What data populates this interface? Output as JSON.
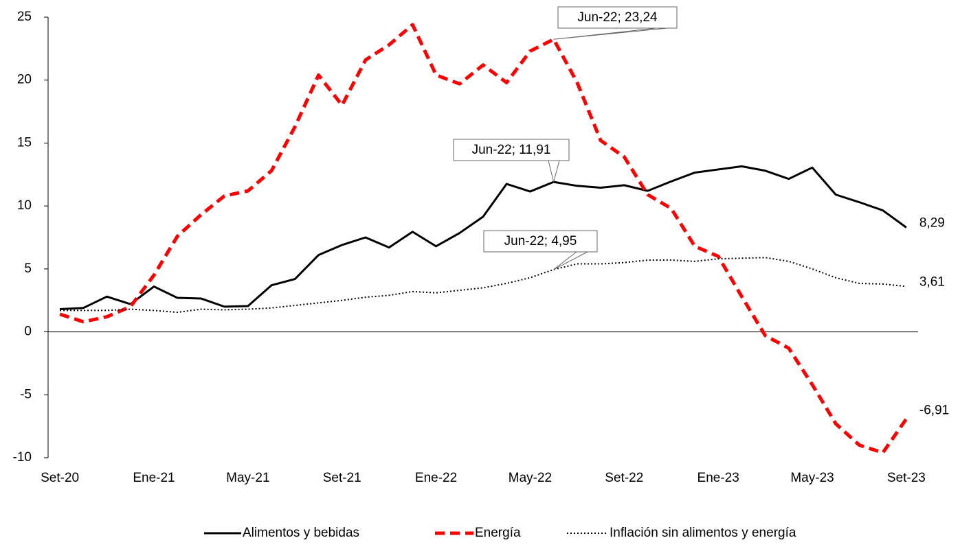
{
  "chart_data": {
    "type": "line",
    "categories": [
      "Set-20",
      null,
      null,
      null,
      "Ene-21",
      null,
      null,
      null,
      "May-21",
      null,
      null,
      null,
      "Set-21",
      null,
      null,
      null,
      "Ene-22",
      null,
      null,
      null,
      "May-22",
      null,
      null,
      null,
      "Set-22",
      null,
      null,
      null,
      "Ene-23",
      null,
      null,
      null,
      "May-23",
      null,
      null,
      null,
      "Set-23"
    ],
    "series": [
      {
        "name": "Alimentos y bebidas",
        "color": "#000000",
        "style": "solid",
        "values": [
          1.8,
          1.9,
          2.8,
          2.2,
          3.6,
          2.7,
          2.65,
          2.0,
          2.05,
          3.7,
          4.2,
          6.1,
          6.9,
          7.5,
          6.7,
          7.95,
          6.8,
          7.85,
          9.15,
          11.75,
          11.15,
          11.91,
          11.6,
          11.45,
          11.65,
          11.2,
          11.95,
          12.65,
          12.9,
          13.15,
          12.8,
          12.15,
          13.05,
          10.9,
          10.3,
          9.65,
          8.29
        ],
        "value_labels": [
          null,
          null,
          null,
          null,
          null,
          null,
          null,
          null,
          null,
          null,
          null,
          null,
          null,
          null,
          null,
          null,
          null,
          null,
          null,
          null,
          null,
          "Jun-22; 11,91",
          null,
          null,
          null,
          null,
          null,
          null,
          null,
          null,
          null,
          null,
          null,
          null,
          null,
          null,
          "8,29"
        ]
      },
      {
        "name": "Energía",
        "color": "#ff0000",
        "style": "dashed",
        "values": [
          1.4,
          0.8,
          1.2,
          2.0,
          4.5,
          7.6,
          9.3,
          10.8,
          11.2,
          12.8,
          16.3,
          20.4,
          18.0,
          21.6,
          22.8,
          24.4,
          20.4,
          19.7,
          21.2,
          19.8,
          22.3,
          23.24,
          19.8,
          15.2,
          13.9,
          10.9,
          9.8,
          6.8,
          6.0,
          2.8,
          -0.3,
          -1.3,
          -4.2,
          -7.3,
          -9.0,
          -9.6,
          -6.91
        ],
        "value_labels": [
          null,
          null,
          null,
          null,
          null,
          null,
          null,
          null,
          null,
          null,
          null,
          null,
          null,
          null,
          null,
          null,
          null,
          null,
          null,
          null,
          null,
          "Jun-22; 23,24",
          null,
          null,
          null,
          null,
          null,
          null,
          null,
          null,
          null,
          null,
          null,
          null,
          null,
          null,
          "-6,91"
        ]
      },
      {
        "name": "Inflación sin alimentos y energía",
        "color": "#000000",
        "style": "dotted",
        "values": [
          1.7,
          1.7,
          1.7,
          1.8,
          1.7,
          1.55,
          1.8,
          1.75,
          1.8,
          1.9,
          2.1,
          2.3,
          2.5,
          2.75,
          2.9,
          3.2,
          3.1,
          3.3,
          3.5,
          3.85,
          4.3,
          4.95,
          5.4,
          5.4,
          5.5,
          5.7,
          5.7,
          5.6,
          5.8,
          5.85,
          5.9,
          5.6,
          5.0,
          4.3,
          3.85,
          3.8,
          3.61
        ],
        "value_labels": [
          null,
          null,
          null,
          null,
          null,
          null,
          null,
          null,
          null,
          null,
          null,
          null,
          null,
          null,
          null,
          null,
          null,
          null,
          null,
          null,
          null,
          "Jun-22; 4,95",
          null,
          null,
          null,
          null,
          null,
          null,
          null,
          null,
          null,
          null,
          null,
          null,
          null,
          null,
          "3,61"
        ]
      }
    ],
    "ylim": [
      -10,
      25
    ],
    "yticks": [
      -10,
      -5,
      0,
      5,
      10,
      15,
      20,
      25
    ],
    "grid": false,
    "legend": "bottom"
  }
}
